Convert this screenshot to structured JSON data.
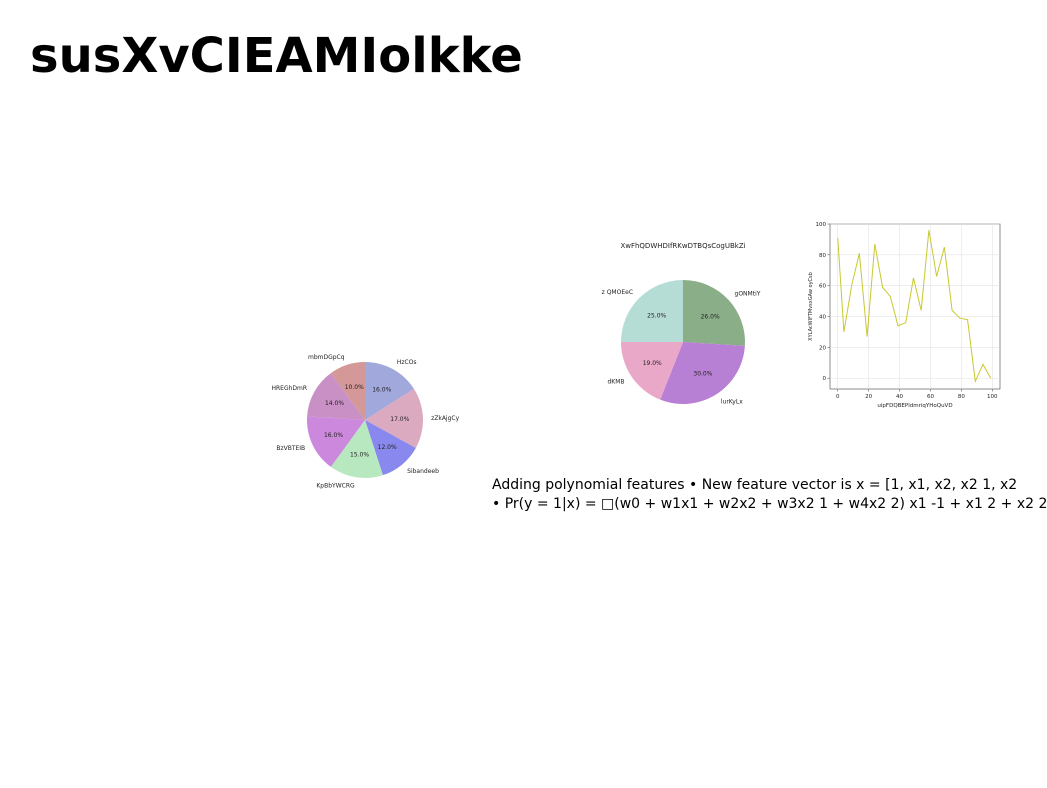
{
  "page": {
    "title": "susXvCIEAMIolkke"
  },
  "caption": {
    "line1": "Adding polynomial features • New feature vector is x = [1, x1, x2, x2 1, x2",
    "line2": "• Pr(y = 1|x) = □(w0 + w1x1 + w2x2 + w3x2 1 + w4x2 2) x1 -1 + x1 2 + x2 2"
  },
  "chart_data": [
    {
      "type": "pie",
      "title": "",
      "slices": [
        {
          "label": "HzCOs",
          "value": 16.0,
          "color": "#a0a8dc"
        },
        {
          "label": "zZkAjgCy",
          "value": 17.0,
          "color": "#dcaac0"
        },
        {
          "label": "Sibandeeb",
          "value": 12.0,
          "color": "#8888ee"
        },
        {
          "label": "KpBbYWCRG",
          "value": 15.0,
          "color": "#b8e8c0"
        },
        {
          "label": "BzVBTEIB",
          "value": 16.0,
          "color": "#cc88dc"
        },
        {
          "label": "HREGhDmR",
          "value": 14.0,
          "color": "#c890c4"
        },
        {
          "label": "mbmDGpCq",
          "value": 10.0,
          "color": "#d49898"
        }
      ],
      "start_angle_deg": 90,
      "direction": "clockwise",
      "autopct": "%1.1f%%"
    },
    {
      "type": "pie",
      "title": "XwFhQDWHDIfRKwDTBQsCogUBkZi",
      "slices": [
        {
          "label": "gONMtiY",
          "value": 26.0,
          "color": "#8aae88"
        },
        {
          "label": "lurKyLx",
          "value": 30.0,
          "color": "#b880d4"
        },
        {
          "label": "dKMB",
          "value": 19.0,
          "color": "#eaa8c8"
        },
        {
          "label": "z QMOEeC",
          "value": 25.0,
          "color": "#b6dcd6"
        }
      ],
      "start_angle_deg": 90,
      "direction": "clockwise",
      "autopct": "%1.1f%%"
    },
    {
      "type": "line",
      "title": "",
      "xlabel": "uipFDQBEPldmriqYHoQuVD",
      "ylabel": "XYLAcWIFTMvsxGAw oyCsb",
      "xlim": [
        -5,
        105
      ],
      "ylim": [
        -7,
        100
      ],
      "xticks": [
        0,
        20,
        40,
        60,
        80,
        100
      ],
      "yticks": [
        0,
        20,
        40,
        60,
        80,
        100
      ],
      "grid": true,
      "series": [
        {
          "color": "#c8c830",
          "x": [
            0,
            4,
            9,
            14,
            19,
            24,
            29,
            34,
            39,
            44,
            49,
            54,
            59,
            64,
            69,
            74,
            79,
            84,
            89,
            94,
            99
          ],
          "y": [
            91,
            30,
            60,
            81,
            27,
            87,
            59,
            53,
            34,
            36,
            65,
            44,
            96,
            66,
            85,
            44,
            39,
            38,
            -2,
            9,
            0
          ]
        }
      ]
    }
  ]
}
